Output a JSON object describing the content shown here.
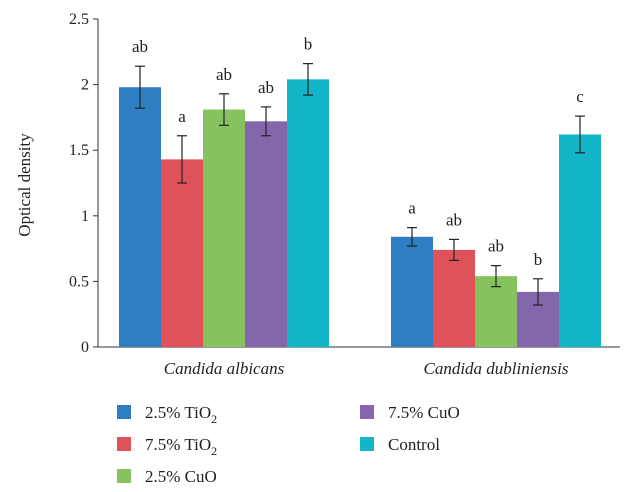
{
  "chart_data": {
    "type": "bar",
    "title": "",
    "xlabel": "",
    "ylabel": "Optical density",
    "ylim": [
      0,
      2.5
    ],
    "yticks": [
      "0",
      "0.5",
      "1",
      "1.5",
      "2",
      "2.5"
    ],
    "grid": false,
    "legend_position": "bottom",
    "categories": [
      "Candida albicans",
      "Candida dubliniensis"
    ],
    "series": [
      {
        "name": "2.5% TiO",
        "name_sub": "2",
        "color": "#2f7ec4",
        "values": [
          1.98,
          0.84
        ],
        "errors": [
          0.16,
          0.07
        ],
        "letters": [
          "ab",
          "a"
        ]
      },
      {
        "name": "7.5% TiO",
        "name_sub": "2",
        "color": "#e0525a",
        "values": [
          1.43,
          0.74
        ],
        "errors": [
          0.18,
          0.08
        ],
        "letters": [
          "a",
          "ab"
        ]
      },
      {
        "name": "2.5% CuO",
        "name_sub": "",
        "color": "#86c35e",
        "values": [
          1.81,
          0.54
        ],
        "errors": [
          0.12,
          0.08
        ],
        "letters": [
          "ab",
          "ab"
        ]
      },
      {
        "name": "7.5% CuO",
        "name_sub": "",
        "color": "#8466ad",
        "values": [
          1.72,
          0.42
        ],
        "errors": [
          0.11,
          0.1
        ],
        "letters": [
          "ab",
          "b"
        ]
      },
      {
        "name": "Control",
        "name_sub": "",
        "color": "#13b5c8",
        "values": [
          2.04,
          1.62
        ],
        "errors": [
          0.12,
          0.14
        ],
        "letters": [
          "b",
          "c"
        ]
      }
    ]
  }
}
